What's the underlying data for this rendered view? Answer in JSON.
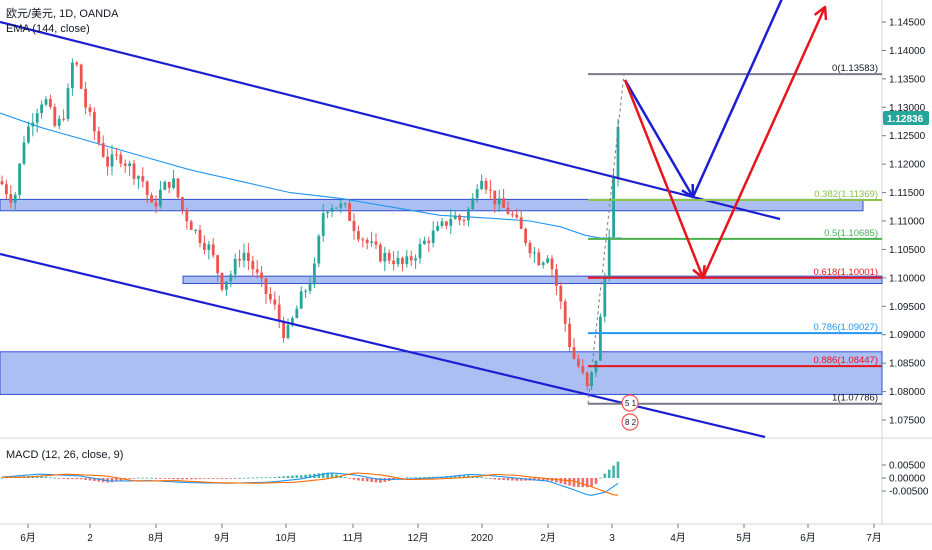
{
  "header": {
    "symbol": "欧元/美元, 1D, OANDA",
    "indicator": "EMA (144, close)"
  },
  "macd": {
    "label": "MACD (12, 26, close, 9)",
    "ticks": [
      "0.00500",
      "0.00000",
      "-0.00500"
    ]
  },
  "current_price": "1.12836",
  "colors": {
    "up": "#26a69a",
    "down": "#ef5350",
    "ema": "#2196f3",
    "zone_fill": "#9db4f0",
    "zone_stroke": "#2f4fd1",
    "channel": "#1c1fd1",
    "arrow_red": "#e8141c",
    "arrow_blue": "#1c1fd1",
    "price_tag": "#26a69a"
  },
  "chart_data": {
    "type": "candlestick",
    "y_ticks": [
      "1.14500",
      "1.14000",
      "1.13500",
      "1.13000",
      "1.12500",
      "1.12000",
      "1.11500",
      "1.11000",
      "1.10500",
      "1.10000",
      "1.09500",
      "1.09000",
      "1.08500",
      "1.08000",
      "1.07500"
    ],
    "ylim": [
      1.0725,
      1.1475
    ],
    "x_ticks": [
      "6月",
      "2",
      "8月",
      "9月",
      "10月",
      "11月",
      "12月",
      "2020",
      "2月",
      "3",
      "4月",
      "5月",
      "6月",
      "7月"
    ],
    "fib_levels": [
      {
        "label": "0(1.13583)",
        "value": 1.13583,
        "color": "#787b86"
      },
      {
        "label": "0.382(1.11369)",
        "value": 1.11369,
        "color": "#8bc34a"
      },
      {
        "label": "0.5(1.10685)",
        "value": 1.10685,
        "color": "#4caf50"
      },
      {
        "label": "0.618(1.10001)",
        "value": 1.10001,
        "color": "#e8141c"
      },
      {
        "label": "0.786(1.09027)",
        "value": 1.09027,
        "color": "#2196f3"
      },
      {
        "label": "0.886(1.08447)",
        "value": 1.08447,
        "color": "#e8141c"
      },
      {
        "label": "1(1.07786)",
        "value": 1.07786,
        "color": "#787b86"
      }
    ],
    "zones": [
      {
        "name": "zone-upper",
        "low": 1.1118,
        "high": 1.1138
      },
      {
        "name": "zone-middle",
        "low": 1.099,
        "high": 1.1003
      },
      {
        "name": "zone-lower",
        "low": 1.0795,
        "high": 1.087
      }
    ],
    "event_badges": [
      "5 1",
      "8 2"
    ]
  }
}
